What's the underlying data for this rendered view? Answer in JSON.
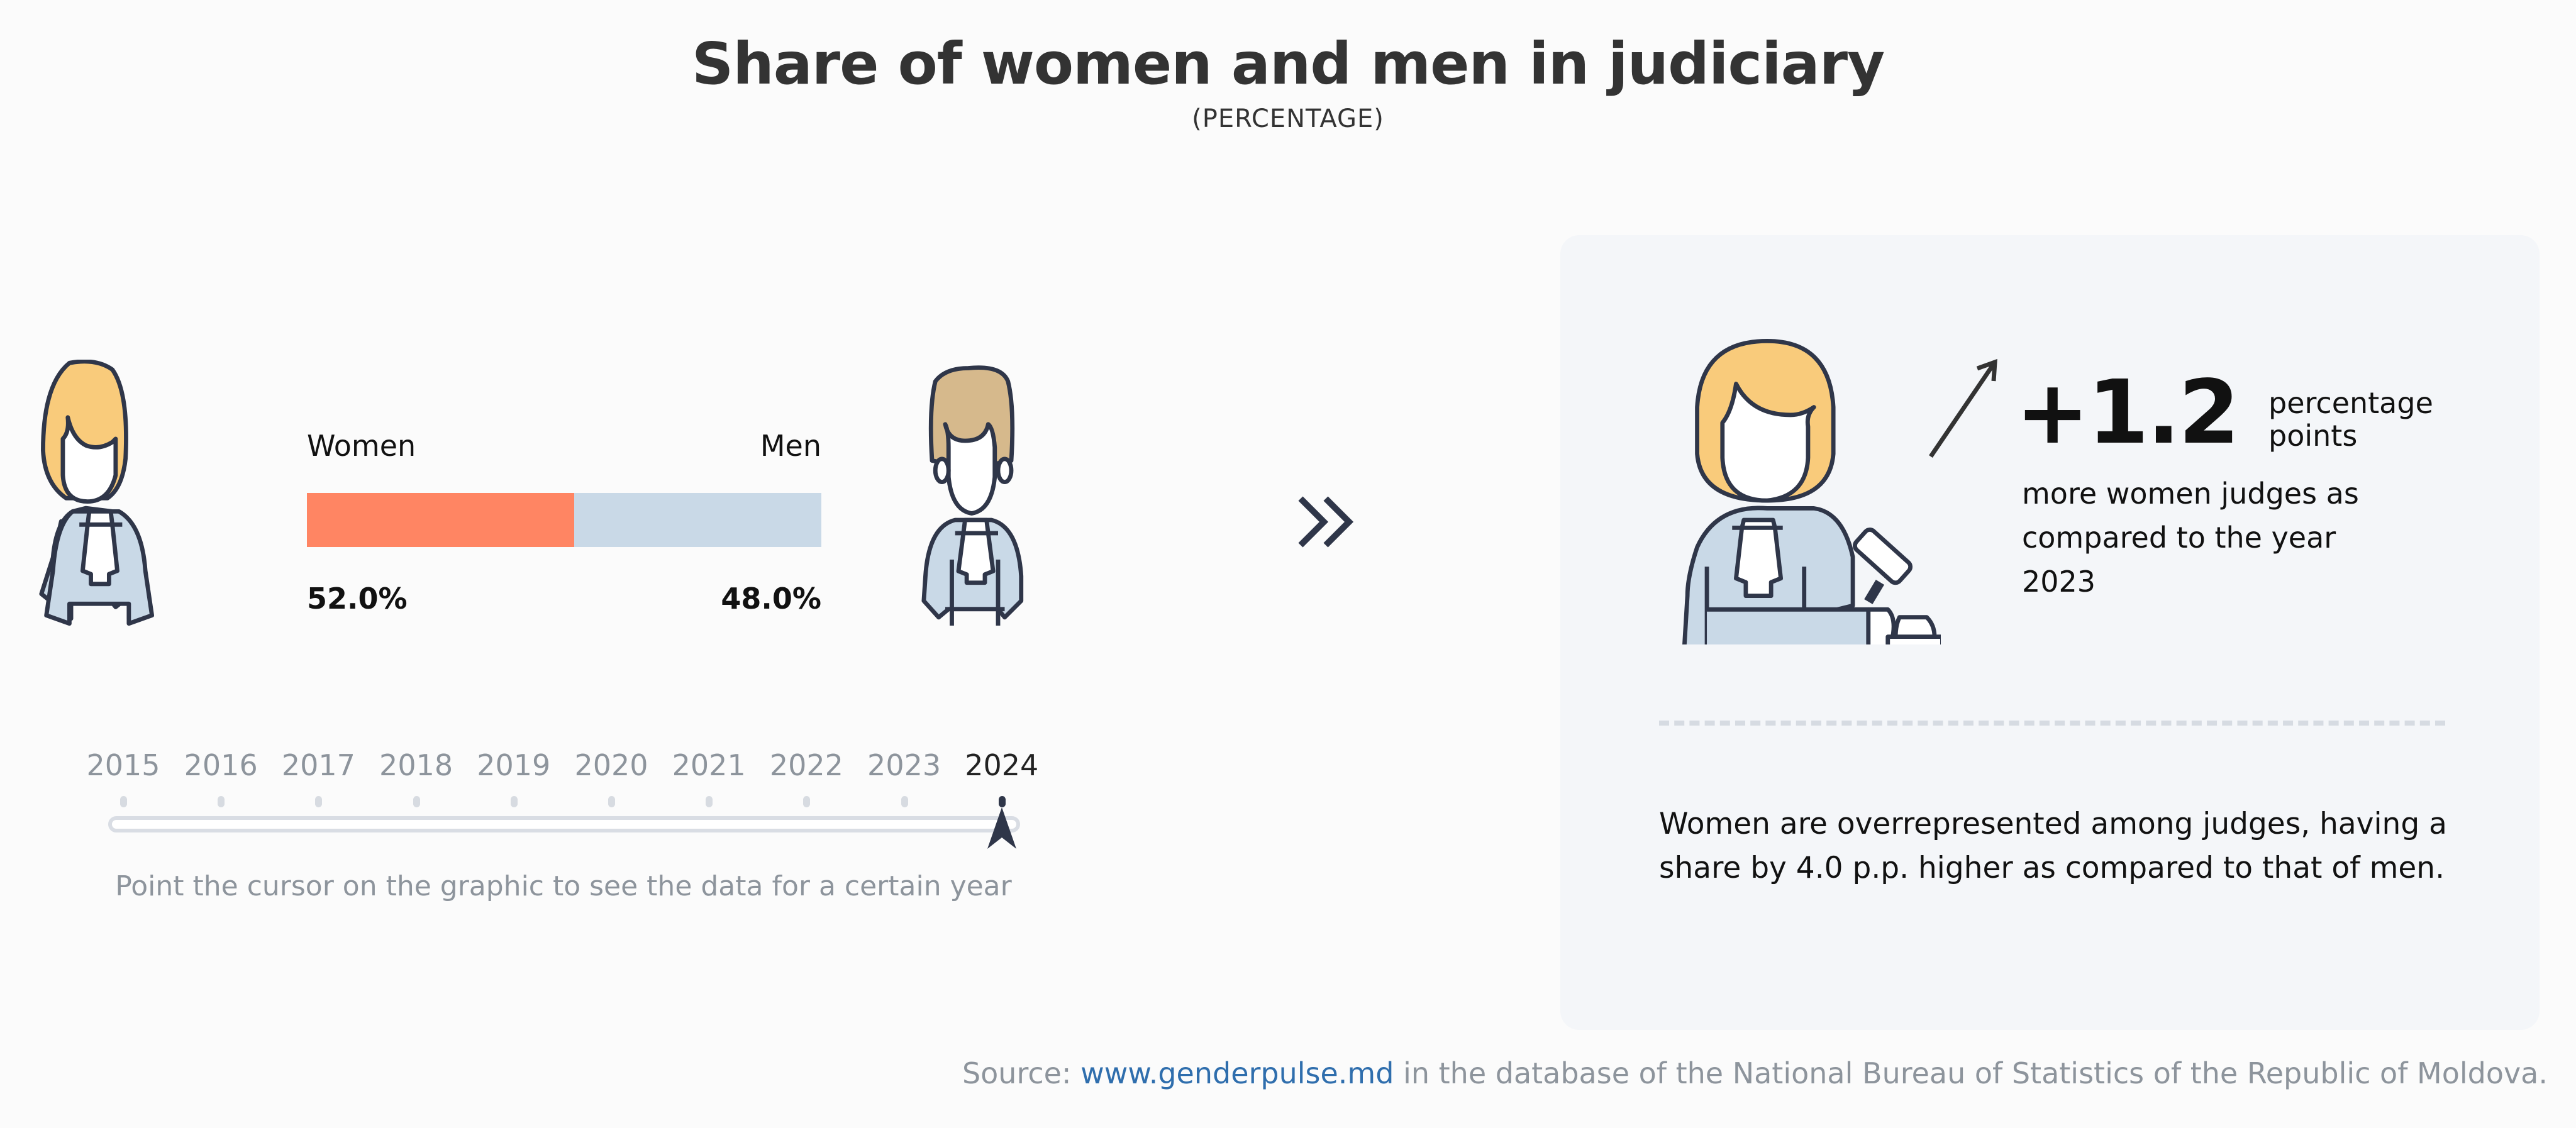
{
  "header": {
    "title": "Share of women and men in judiciary",
    "subtitle": "(PERCENTAGE)"
  },
  "comparison": {
    "women_label": "Women",
    "men_label": "Men",
    "women_value": "52.0%",
    "men_value": "48.0%",
    "women_share": 52.0,
    "men_share": 48.0,
    "colors": {
      "women": "#ff8563",
      "men": "#c9d9e7",
      "female_hair": "#f9cb7b",
      "male_hair": "#d6b98c",
      "outline": "#2f3649"
    }
  },
  "next_icon": "double-chevron-right-icon",
  "timeline": {
    "years": [
      "2015",
      "2016",
      "2017",
      "2018",
      "2019",
      "2020",
      "2021",
      "2022",
      "2023",
      "2024"
    ],
    "selected": "2024",
    "hint": "Point the cursor on the graphic to see the data for a certain year"
  },
  "insight": {
    "delta": "+1.2",
    "delta_unit_line1": "percentage",
    "delta_unit_line2": "points",
    "description": "more women judges as compared to the year 2023",
    "note": "Women are overrepresented among judges, having a share by 4.0 p.p. higher as compared to that of men."
  },
  "source": {
    "prefix": "Source: ",
    "link": "www.genderpulse.md",
    "suffix": " in the database of the National Bureau of Statistics of the Republic of Moldova."
  }
}
